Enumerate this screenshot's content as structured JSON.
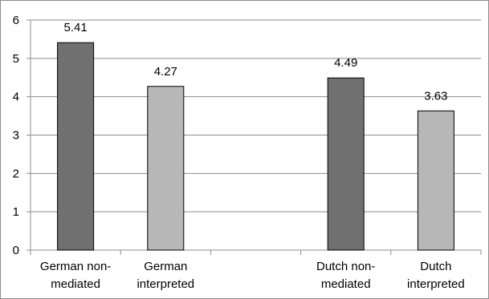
{
  "chart_data": {
    "type": "bar",
    "categories": [
      [
        "German non-",
        "mediated"
      ],
      [
        "German",
        "interpreted"
      ],
      [
        "",
        ""
      ],
      [
        "Dutch non-",
        "mediated"
      ],
      [
        "Dutch",
        "interpreted"
      ]
    ],
    "values": [
      5.41,
      4.27,
      null,
      4.49,
      3.63
    ],
    "data_labels": [
      "5.41",
      "4.27",
      "",
      "4.49",
      "3.63"
    ],
    "bar_colors": [
      "#707070",
      "#b7b7b7",
      null,
      "#707070",
      "#b7b7b7"
    ],
    "ylim": [
      0,
      6
    ],
    "yticks": [
      "0",
      "1",
      "2",
      "3",
      "4",
      "5",
      "6"
    ],
    "grid": "horizontal",
    "title": "",
    "xlabel": "",
    "ylabel": ""
  }
}
